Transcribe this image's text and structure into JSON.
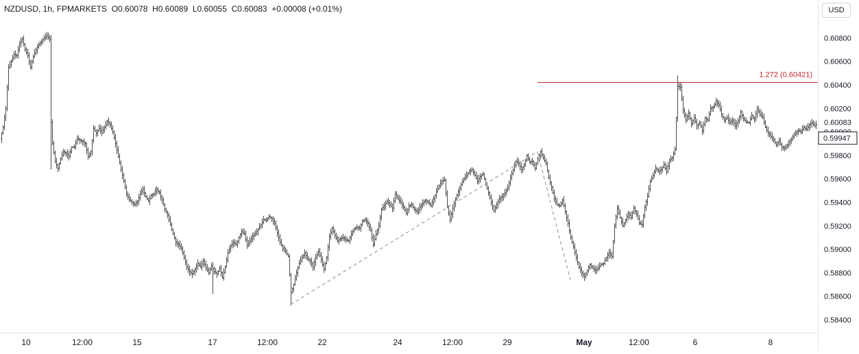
{
  "header": {
    "symbol": "NZDUSD",
    "interval": "1h",
    "exchange": "FPMARKETS",
    "open": "O0.60078",
    "high": "H0.60089",
    "low": "L0.60055",
    "close": "C0.60083",
    "change": "+0.00008 (+0.01%)"
  },
  "currency_button": "USD",
  "colors": {
    "candle": "#4a4a4a",
    "fib_line": "#c62828",
    "dashed": "#9e9e9e",
    "axis_text": "#131722",
    "badge_bg": "#ffffff"
  },
  "chart_data": {
    "type": "ohlc",
    "y_axis": {
      "ticks": [
        "0.58400",
        "0.58600",
        "0.58800",
        "0.59000",
        "0.59200",
        "0.59400",
        "0.59600",
        "0.59800",
        "0.60000",
        "0.60200",
        "0.60400",
        "0.60600",
        "0.60800"
      ],
      "range": [
        0.5832,
        0.6087
      ]
    },
    "x_axis": {
      "labels": [
        "10",
        "12:00",
        "15",
        "17",
        "12:00",
        "22",
        "24",
        "12:00",
        "29",
        "May",
        "12:00",
        "6",
        "8"
      ],
      "bold": [
        "May"
      ]
    },
    "price_labels": {
      "last_close": {
        "value": "0.60083",
        "price": 0.60083
      },
      "crosshair": {
        "value": "0.59947",
        "price": 0.59947
      }
    },
    "annotations": [
      {
        "type": "horizontal_line",
        "label": "1.272 (0.60421)",
        "price": 0.60421,
        "from_date": "Apr 29 18:00"
      }
    ],
    "trendlines": [
      {
        "from": {
          "date": "Apr 18 16:00",
          "price": 0.5853
        },
        "to": {
          "date": "Apr 29 18:00",
          "price": 0.5983
        }
      },
      {
        "from": {
          "date": "Apr 29 18:00",
          "price": 0.5983
        },
        "to": {
          "date": "Apr 30 18:00",
          "price": 0.5874
        }
      }
    ],
    "close_path": [
      [
        0,
        0.5994
      ],
      [
        2,
        0.6004
      ],
      [
        4,
        0.602
      ],
      [
        6,
        0.6055
      ],
      [
        8,
        0.606
      ],
      [
        10,
        0.6066
      ],
      [
        12,
        0.6065
      ],
      [
        14,
        0.6075
      ],
      [
        16,
        0.6079
      ],
      [
        18,
        0.607
      ],
      [
        20,
        0.6065
      ],
      [
        22,
        0.6055
      ],
      [
        24,
        0.6064
      ],
      [
        26,
        0.607
      ],
      [
        28,
        0.6074
      ],
      [
        30,
        0.6077
      ],
      [
        32,
        0.608
      ],
      [
        34,
        0.6082
      ],
      [
        36,
        0.6079
      ],
      [
        37,
        0.6008
      ],
      [
        38,
        0.599
      ],
      [
        40,
        0.5975
      ],
      [
        42,
        0.5969
      ],
      [
        44,
        0.5977
      ],
      [
        46,
        0.5983
      ],
      [
        48,
        0.5982
      ],
      [
        50,
        0.5979
      ],
      [
        52,
        0.5987
      ],
      [
        54,
        0.5987
      ],
      [
        56,
        0.5994
      ],
      [
        58,
        0.5993
      ],
      [
        60,
        0.5992
      ],
      [
        62,
        0.599
      ],
      [
        64,
        0.5979
      ],
      [
        66,
        0.5983
      ],
      [
        68,
        0.6003
      ],
      [
        70,
        0.5999
      ],
      [
        72,
        0.6003
      ],
      [
        74,
        0.6
      ],
      [
        76,
        0.6004
      ],
      [
        78,
        0.6009
      ],
      [
        80,
        0.6006
      ],
      [
        82,
        0.6
      ],
      [
        84,
        0.599
      ],
      [
        86,
        0.5979
      ],
      [
        88,
        0.5968
      ],
      [
        90,
        0.5958
      ],
      [
        92,
        0.5947
      ],
      [
        94,
        0.5942
      ],
      [
        96,
        0.594
      ],
      [
        98,
        0.5938
      ],
      [
        100,
        0.5941
      ],
      [
        102,
        0.5947
      ],
      [
        104,
        0.5951
      ],
      [
        106,
        0.5945
      ],
      [
        108,
        0.5941
      ],
      [
        110,
        0.5946
      ],
      [
        112,
        0.5947
      ],
      [
        114,
        0.5951
      ],
      [
        116,
        0.5948
      ],
      [
        118,
        0.5942
      ],
      [
        120,
        0.5934
      ],
      [
        122,
        0.5929
      ],
      [
        124,
        0.5921
      ],
      [
        126,
        0.5913
      ],
      [
        128,
        0.5906
      ],
      [
        130,
        0.5904
      ],
      [
        132,
        0.5901
      ],
      [
        134,
        0.5893
      ],
      [
        136,
        0.5885
      ],
      [
        138,
        0.5881
      ],
      [
        140,
        0.5879
      ],
      [
        142,
        0.5883
      ],
      [
        144,
        0.5888
      ],
      [
        146,
        0.5885
      ],
      [
        148,
        0.589
      ],
      [
        150,
        0.5884
      ],
      [
        152,
        0.588
      ],
      [
        154,
        0.5886
      ],
      [
        156,
        0.5881
      ],
      [
        158,
        0.5879
      ],
      [
        160,
        0.5884
      ],
      [
        162,
        0.5876
      ],
      [
        164,
        0.5885
      ],
      [
        166,
        0.5897
      ],
      [
        168,
        0.5903
      ],
      [
        170,
        0.5906
      ],
      [
        172,
        0.5904
      ],
      [
        174,
        0.591
      ],
      [
        176,
        0.5915
      ],
      [
        178,
        0.5913
      ],
      [
        180,
        0.5903
      ],
      [
        182,
        0.5907
      ],
      [
        184,
        0.5911
      ],
      [
        186,
        0.5913
      ],
      [
        188,
        0.5917
      ],
      [
        190,
        0.5921
      ],
      [
        192,
        0.5925
      ],
      [
        194,
        0.5925
      ],
      [
        196,
        0.5928
      ],
      [
        198,
        0.5926
      ],
      [
        200,
        0.5922
      ],
      [
        202,
        0.5914
      ],
      [
        204,
        0.5906
      ],
      [
        206,
        0.5901
      ],
      [
        208,
        0.5898
      ],
      [
        210,
        0.5894
      ],
      [
        212,
        0.5863
      ],
      [
        214,
        0.587
      ],
      [
        216,
        0.588
      ],
      [
        218,
        0.5888
      ],
      [
        220,
        0.5893
      ],
      [
        222,
        0.5897
      ],
      [
        224,
        0.5892
      ],
      [
        226,
        0.589
      ],
      [
        228,
        0.5885
      ],
      [
        230,
        0.5893
      ],
      [
        232,
        0.5898
      ],
      [
        234,
        0.5891
      ],
      [
        236,
        0.5883
      ],
      [
        238,
        0.5893
      ],
      [
        240,
        0.5911
      ],
      [
        242,
        0.5918
      ],
      [
        244,
        0.5912
      ],
      [
        246,
        0.5907
      ],
      [
        248,
        0.5909
      ],
      [
        250,
        0.591
      ],
      [
        252,
        0.5908
      ],
      [
        254,
        0.5907
      ],
      [
        256,
        0.5913
      ],
      [
        258,
        0.5917
      ],
      [
        260,
        0.5919
      ],
      [
        262,
        0.5918
      ],
      [
        264,
        0.5924
      ],
      [
        266,
        0.5925
      ],
      [
        268,
        0.5922
      ],
      [
        270,
        0.5916
      ],
      [
        272,
        0.5904
      ],
      [
        274,
        0.5913
      ],
      [
        276,
        0.592
      ],
      [
        278,
        0.5934
      ],
      [
        280,
        0.5937
      ],
      [
        282,
        0.5941
      ],
      [
        284,
        0.5938
      ],
      [
        286,
        0.5935
      ],
      [
        288,
        0.5947
      ],
      [
        290,
        0.5943
      ],
      [
        292,
        0.594
      ],
      [
        294,
        0.5936
      ],
      [
        296,
        0.5931
      ],
      [
        298,
        0.5937
      ],
      [
        300,
        0.5938
      ],
      [
        302,
        0.5934
      ],
      [
        304,
        0.5932
      ],
      [
        306,
        0.5936
      ],
      [
        308,
        0.5939
      ],
      [
        310,
        0.5942
      ],
      [
        312,
        0.594
      ],
      [
        314,
        0.5937
      ],
      [
        316,
        0.5943
      ],
      [
        318,
        0.5949
      ],
      [
        320,
        0.5954
      ],
      [
        322,
        0.5958
      ],
      [
        324,
        0.5959
      ],
      [
        326,
        0.5936
      ],
      [
        328,
        0.5925
      ],
      [
        330,
        0.5935
      ],
      [
        332,
        0.5943
      ],
      [
        334,
        0.5949
      ],
      [
        336,
        0.5955
      ],
      [
        338,
        0.596
      ],
      [
        340,
        0.5963
      ],
      [
        342,
        0.5966
      ],
      [
        344,
        0.5968
      ],
      [
        346,
        0.5963
      ],
      [
        348,
        0.5958
      ],
      [
        350,
        0.5962
      ],
      [
        352,
        0.5964
      ],
      [
        354,
        0.5956
      ],
      [
        356,
        0.5948
      ],
      [
        358,
        0.594
      ],
      [
        360,
        0.5933
      ],
      [
        362,
        0.5938
      ],
      [
        364,
        0.5943
      ],
      [
        366,
        0.5945
      ],
      [
        368,
        0.5948
      ],
      [
        370,
        0.5952
      ],
      [
        372,
        0.5961
      ],
      [
        374,
        0.5968
      ],
      [
        376,
        0.5975
      ],
      [
        378,
        0.5973
      ],
      [
        380,
        0.5968
      ],
      [
        382,
        0.5972
      ],
      [
        384,
        0.598
      ],
      [
        386,
        0.5974
      ],
      [
        388,
        0.5975
      ],
      [
        390,
        0.5969
      ],
      [
        392,
        0.5977
      ],
      [
        394,
        0.5983
      ],
      [
        396,
        0.5978
      ],
      [
        398,
        0.5973
      ],
      [
        400,
        0.5961
      ],
      [
        402,
        0.5953
      ],
      [
        404,
        0.5943
      ],
      [
        406,
        0.5938
      ],
      [
        408,
        0.5937
      ],
      [
        410,
        0.5942
      ],
      [
        412,
        0.5932
      ],
      [
        414,
        0.5922
      ],
      [
        416,
        0.591
      ],
      [
        418,
        0.5902
      ],
      [
        420,
        0.5893
      ],
      [
        422,
        0.5885
      ],
      [
        424,
        0.588
      ],
      [
        426,
        0.5877
      ],
      [
        428,
        0.5882
      ],
      [
        430,
        0.5887
      ],
      [
        432,
        0.5884
      ],
      [
        434,
        0.5882
      ],
      [
        436,
        0.5884
      ],
      [
        438,
        0.5887
      ],
      [
        440,
        0.5888
      ],
      [
        442,
        0.5893
      ],
      [
        444,
        0.5897
      ],
      [
        446,
        0.5894
      ],
      [
        448,
        0.592
      ],
      [
        450,
        0.5935
      ],
      [
        452,
        0.5927
      ],
      [
        454,
        0.592
      ],
      [
        456,
        0.5925
      ],
      [
        458,
        0.5931
      ],
      [
        460,
        0.5927
      ],
      [
        462,
        0.5935
      ],
      [
        464,
        0.593
      ],
      [
        466,
        0.5922
      ],
      [
        468,
        0.5921
      ],
      [
        470,
        0.5936
      ],
      [
        472,
        0.5945
      ],
      [
        474,
        0.5958
      ],
      [
        476,
        0.5963
      ],
      [
        478,
        0.5969
      ],
      [
        480,
        0.5966
      ],
      [
        482,
        0.5968
      ],
      [
        484,
        0.5972
      ],
      [
        486,
        0.5966
      ],
      [
        488,
        0.5976
      ],
      [
        490,
        0.5978
      ],
      [
        492,
        0.5985
      ],
      [
        494,
        0.6039
      ],
      [
        496,
        0.6038
      ],
      [
        498,
        0.6018
      ],
      [
        500,
        0.601
      ],
      [
        502,
        0.6016
      ],
      [
        504,
        0.6007
      ],
      [
        506,
        0.6012
      ],
      [
        508,
        0.6005
      ],
      [
        510,
        0.6008
      ],
      [
        512,
        0.6001
      ],
      [
        514,
        0.6012
      ],
      [
        516,
        0.601
      ],
      [
        518,
        0.602
      ],
      [
        520,
        0.6021
      ],
      [
        522,
        0.6026
      ],
      [
        524,
        0.6023
      ],
      [
        526,
        0.6015
      ],
      [
        528,
        0.601
      ],
      [
        530,
        0.6012
      ],
      [
        532,
        0.6008
      ],
      [
        534,
        0.601
      ],
      [
        536,
        0.6005
      ],
      [
        538,
        0.6009
      ],
      [
        540,
        0.6017
      ],
      [
        542,
        0.6011
      ],
      [
        544,
        0.6008
      ],
      [
        546,
        0.6008
      ],
      [
        548,
        0.6014
      ],
      [
        550,
        0.6011
      ],
      [
        552,
        0.6019
      ],
      [
        554,
        0.6015
      ],
      [
        556,
        0.6012
      ],
      [
        558,
        0.6004
      ],
      [
        560,
        0.5999
      ],
      [
        562,
        0.5996
      ],
      [
        564,
        0.5993
      ],
      [
        566,
        0.5989
      ],
      [
        568,
        0.5992
      ],
      [
        570,
        0.5987
      ],
      [
        572,
        0.5986
      ],
      [
        574,
        0.5989
      ],
      [
        576,
        0.5993
      ],
      [
        578,
        0.5996
      ],
      [
        580,
        0.5999
      ],
      [
        582,
        0.6001
      ],
      [
        584,
        0.6
      ],
      [
        586,
        0.6004
      ],
      [
        588,
        0.6002
      ],
      [
        590,
        0.6006
      ],
      [
        592,
        0.6008
      ],
      [
        594,
        0.6005
      ],
      [
        596,
        0.6008
      ]
    ]
  }
}
